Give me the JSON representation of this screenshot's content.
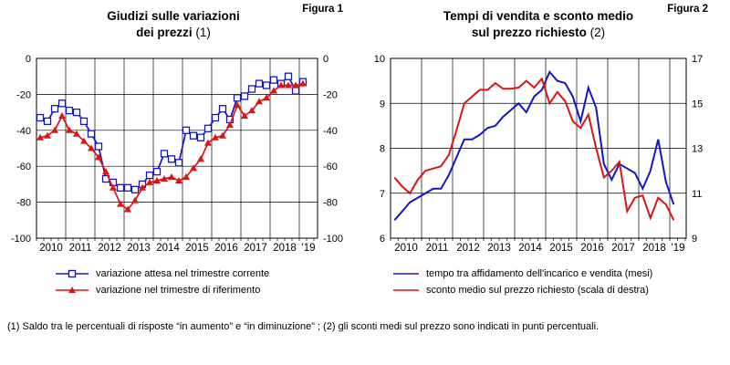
{
  "page": {
    "background": "#ffffff",
    "accent_blue": "#1414c8",
    "accent_red": "#dd1414"
  },
  "figure1": {
    "figure_label": "Figura 1",
    "title_line1": "Giudizi sulle variazioni",
    "title_line2": "dei prezzi",
    "title_note": "(1)",
    "legend": [
      {
        "label": "variazione attesa nel trimestre corrente",
        "color": "#1414c8",
        "marker": "open-square"
      },
      {
        "label": "variazione nel trimestre di riferimento",
        "color": "#dd1414",
        "marker": "filled-triangle"
      }
    ]
  },
  "figure2": {
    "figure_label": "Figura 2",
    "title_line1": "Tempi di vendita e sconto medio",
    "title_line2": "sul prezzo richiesto",
    "title_note": "(2)",
    "legend": [
      {
        "label": "tempo tra affidamento dell'incarico e vendita (mesi)",
        "color": "#1414c8",
        "marker": "none"
      },
      {
        "label": "sconto medio sul prezzo richiesto (scala di destra)",
        "color": "#dd1414",
        "marker": "none"
      }
    ]
  },
  "footnote": "(1) Saldo tra le percentuali di risposte “in aumento” e “in diminuzione” ; (2) gli sconti medi sul prezzo sono indicati in punti percentuali.",
  "chart_data": [
    {
      "type": "line",
      "title": "Giudizi sulle variazioni dei prezzi (1)",
      "x_frequency": "quarterly",
      "x_range": [
        "2010-Q1",
        "2019-Q1"
      ],
      "x_tick_labels": [
        "2010",
        "2011",
        "2012",
        "2013",
        "2014",
        "2015",
        "2016",
        "2017",
        "2018",
        "'19"
      ],
      "ylim": [
        -100,
        0
      ],
      "y_ticks": [
        0,
        -20,
        -40,
        -60,
        -80,
        -100
      ],
      "grid": true,
      "legend_position": "below",
      "series": [
        {
          "name": "variazione attesa nel trimestre corrente",
          "color": "#1414c8",
          "marker": "open-square",
          "values": [
            -33,
            -35,
            -28,
            -25,
            -29,
            -30,
            -35,
            -42,
            -49,
            -67,
            -69,
            -72,
            -72,
            -73,
            -70,
            -65,
            -63,
            -53,
            -56,
            -58,
            -40,
            -43,
            -44,
            -39,
            -33,
            -28,
            -34,
            -22,
            -21,
            -17,
            -14,
            -15,
            -12,
            -14,
            -10,
            -18,
            -13
          ]
        },
        {
          "name": "variazione nel trimestre di riferimento",
          "color": "#dd1414",
          "marker": "filled-triangle",
          "values": [
            -44,
            -43,
            -40,
            -32,
            -40,
            -42,
            -46,
            -50,
            -55,
            -63,
            -72,
            -81,
            -84,
            -79,
            -72,
            -69,
            -68,
            -67,
            -66,
            -68,
            -66,
            -61,
            -56,
            -47,
            -44,
            -43,
            -37,
            -26,
            -32,
            -29,
            -24,
            -22,
            -18,
            -15,
            -15,
            -15,
            -14
          ]
        }
      ]
    },
    {
      "type": "line",
      "title": "Tempi di vendita e sconto medio sul prezzo richiesto (2)",
      "x_frequency": "quarterly",
      "x_range": [
        "2010-Q1",
        "2019-Q1"
      ],
      "x_tick_labels": [
        "2010",
        "2011",
        "2012",
        "2013",
        "2014",
        "2015",
        "2016",
        "2017",
        "2018",
        "'19"
      ],
      "left_ylim": [
        6,
        10
      ],
      "left_y_ticks": [
        10,
        9,
        8,
        7,
        6
      ],
      "right_ylim": [
        9,
        17
      ],
      "right_y_ticks": [
        17,
        15,
        13,
        11,
        9
      ],
      "grid": true,
      "legend_position": "below",
      "series": [
        {
          "name": "tempo tra affidamento dell'incarico e vendita (mesi)",
          "axis": "left",
          "color": "#1414c8",
          "marker": "none",
          "values": [
            6.4,
            6.6,
            6.8,
            6.9,
            7.0,
            7.1,
            7.1,
            7.4,
            7.8,
            8.2,
            8.2,
            8.3,
            8.45,
            8.5,
            8.7,
            8.85,
            9.0,
            8.8,
            9.15,
            9.3,
            9.7,
            9.5,
            9.45,
            9.15,
            8.6,
            9.35,
            8.9,
            7.65,
            7.3,
            7.65,
            7.55,
            7.45,
            7.1,
            7.5,
            8.2,
            7.25,
            6.75
          ]
        },
        {
          "name": "sconto medio sul prezzo richiesto (scala di destra)",
          "axis": "right",
          "color": "#dd1414",
          "marker": "none",
          "values": [
            11.7,
            11.3,
            11.0,
            11.6,
            12.0,
            12.1,
            12.2,
            12.7,
            13.8,
            15.0,
            15.3,
            15.6,
            15.6,
            15.9,
            15.65,
            15.65,
            15.7,
            16.0,
            15.7,
            16.1,
            15.0,
            15.5,
            15.1,
            14.2,
            13.9,
            14.5,
            13.0,
            11.7,
            12.0,
            12.4,
            10.2,
            10.8,
            10.9,
            9.9,
            10.8,
            10.5,
            9.8
          ]
        }
      ]
    }
  ]
}
